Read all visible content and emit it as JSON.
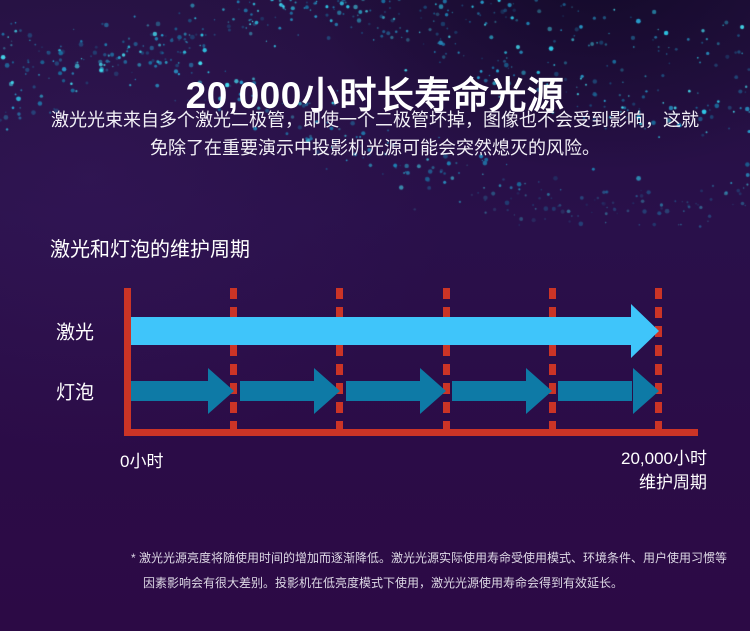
{
  "header": {
    "title": "20,000小时长寿命光源",
    "intro_line1": "激光光束来自多个激光二极管，即使一个二极管坏掉，图像也不会受到影响，这就",
    "intro_line2": "免除了在重要演示中投影机光源可能会突然熄灭的风险。"
  },
  "chart_data": {
    "type": "timeline-arrows",
    "title": "激光和灯泡的维护周期",
    "x_axis": {
      "start_label": "0小时",
      "end_label": "20,000小时",
      "end_sublabel": "维护周期",
      "range_hours": [
        0,
        20000
      ],
      "gridline_count": 5,
      "gridline_interval_hours": 4000
    },
    "series": [
      {
        "name": "激光",
        "maintenance_cycles": 1,
        "cycle_hours": 20000,
        "color": "#3fc5fa"
      },
      {
        "name": "灯泡",
        "maintenance_cycles": 5,
        "cycle_hours": 4000,
        "color": "#0e7aa6"
      }
    ],
    "axis_color": "#cb3426",
    "gridline_color": "#cb3426",
    "gridline_style": "dashed",
    "legend_position": "left-row-labels",
    "grid": true
  },
  "footer": {
    "line1": "* 激光光源亮度将随使用时间的增加而逐渐降低。激光光源实际使用寿命受使用模式、环境条件、用户使用习惯等",
    "line2": "因素影响会有很大差别。投影机在低亮度模式下使用，激光光源使用寿命会得到有效延长。"
  },
  "colors": {
    "background_top": "#241040",
    "background_bottom": "#2c0a45",
    "particle_cyan": "#2fd1ee",
    "laser_arrow": "#3fc5fa",
    "bulb_arrow": "#0e7aa6",
    "axis_red": "#cb3426",
    "text_white": "#ffffff"
  }
}
